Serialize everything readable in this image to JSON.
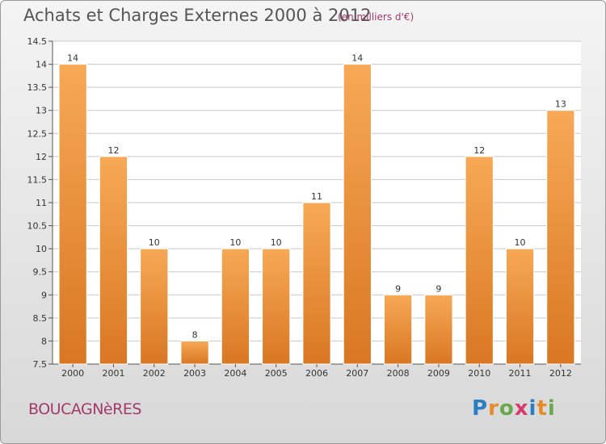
{
  "title": "Achats et Charges Externes 2000 à 2012",
  "subtitle": "(en milliers d'€)",
  "town": "BOUCAGNèRES",
  "logo": {
    "letters": [
      "P",
      "r",
      "o",
      "x",
      "i",
      "t",
      "i"
    ],
    "colors": [
      "#2a7fc4",
      "#e58b2a",
      "#6aa84f",
      "#d63b6e",
      "#2a7fc4",
      "#e58b2a",
      "#6aa84f"
    ]
  },
  "colors": {
    "bar_top": "#f7a955",
    "bar_bottom": "#d97723",
    "accent": "#a23a6b"
  },
  "chart_data": {
    "type": "bar",
    "title": "Achats et Charges Externes 2000 à 2012",
    "subtitle": "(en milliers d'€)",
    "categories": [
      "2000",
      "2001",
      "2002",
      "2003",
      "2004",
      "2005",
      "2006",
      "2007",
      "2008",
      "2009",
      "2010",
      "2011",
      "2012"
    ],
    "values": [
      14,
      12,
      10,
      8,
      10,
      10,
      11,
      14,
      9,
      9,
      12,
      10,
      13
    ],
    "ylim": [
      7.5,
      14.5
    ],
    "yticks": [
      "7.5",
      "8",
      "8.5",
      "9",
      "9.5",
      "10",
      "10.5",
      "11",
      "11.5",
      "12",
      "12.5",
      "13",
      "13.5",
      "14",
      "14.5"
    ],
    "grid": true,
    "legend": "none"
  }
}
